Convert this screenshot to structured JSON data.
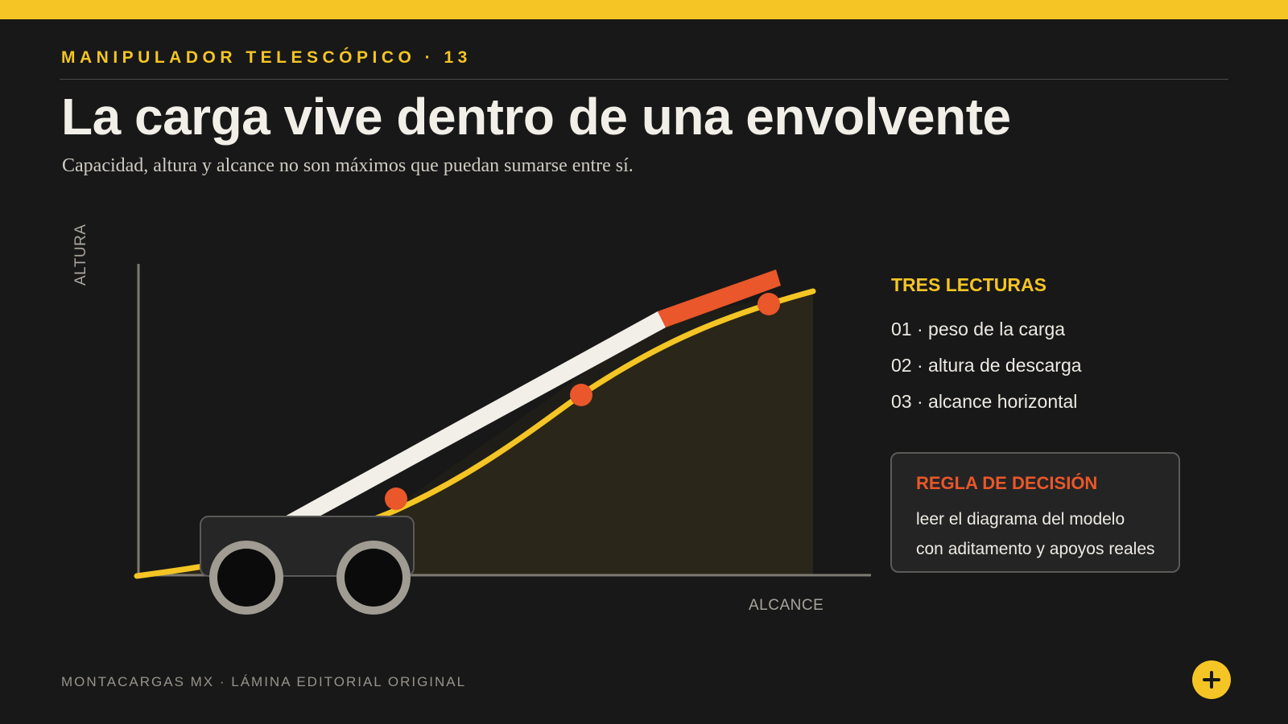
{
  "header": {
    "kicker": "MANIPULADOR TELESCÓPICO · 13",
    "title": "La carga vive dentro de una envolvente",
    "subtitle": "Capacidad, altura y alcance no son máximos que puedan sumarse entre sí."
  },
  "diagram": {
    "y_axis_label": "ALTURA",
    "x_axis_label": "ALCANCE",
    "colors": {
      "envelope_line": "#F4C524",
      "envelope_fill": "#2A2619",
      "boom": "#F2EFE8",
      "boom_tip": "#E9572A",
      "markers": "#E9572A",
      "axis": "#7d7a72",
      "vehicle_body": "#262626",
      "wheel_rim": "#A09C93"
    },
    "marker_count": 3
  },
  "side_panel": {
    "heading": "TRES LECTURAS",
    "readings": [
      "01 · peso de la carga",
      "02 · altura de descarga",
      "03 · alcance horizontal"
    ],
    "decision_rule": {
      "title": "REGLA DE DECISIÓN",
      "lines": [
        "leer el diagrama del modelo",
        "con aditamento y apoyos reales"
      ]
    }
  },
  "footer": {
    "text": "MONTACARGAS MX · LÁMINA EDITORIAL ORIGINAL",
    "action_icon": "plus-icon"
  }
}
